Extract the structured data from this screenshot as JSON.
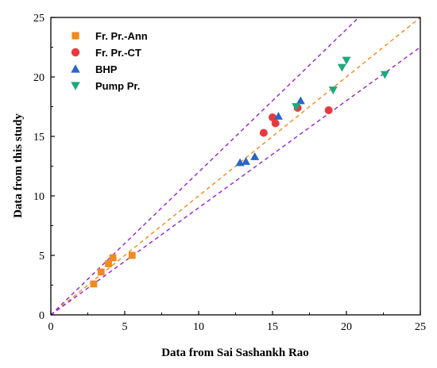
{
  "chart_data": {
    "type": "scatter",
    "title": "",
    "xlabel": "Data from Sai Sashankh Rao",
    "ylabel": "Data from this study",
    "xlim": [
      0,
      25
    ],
    "ylim": [
      0,
      25
    ],
    "xticks": [
      0,
      5,
      10,
      15,
      20,
      25
    ],
    "yticks": [
      0,
      5,
      10,
      15,
      20,
      25
    ],
    "grid": false,
    "legend_position": "top-left",
    "series": [
      {
        "name": "Fr. Pr.-Ann",
        "marker": "square",
        "color": "#f28a1e",
        "points": [
          [
            2.9,
            2.6
          ],
          [
            3.4,
            3.6
          ],
          [
            3.9,
            4.3
          ],
          [
            4.2,
            4.8
          ],
          [
            5.5,
            5.0
          ]
        ]
      },
      {
        "name": "Fr. Pr.-CT",
        "marker": "circle",
        "color": "#e8393f",
        "points": [
          [
            14.4,
            15.3
          ],
          [
            15.0,
            16.6
          ],
          [
            15.2,
            16.1
          ],
          [
            16.7,
            17.4
          ],
          [
            18.8,
            17.2
          ]
        ]
      },
      {
        "name": "BHP",
        "marker": "triangle-up",
        "color": "#2867c9",
        "points": [
          [
            12.8,
            12.8
          ],
          [
            13.2,
            12.9
          ],
          [
            13.8,
            13.3
          ],
          [
            15.4,
            16.7
          ],
          [
            16.9,
            18.0
          ]
        ]
      },
      {
        "name": "Pump Pr.",
        "marker": "triangle-down",
        "color": "#1aa97a",
        "points": [
          [
            16.6,
            17.5
          ],
          [
            19.1,
            18.9
          ],
          [
            19.7,
            20.8
          ],
          [
            20.0,
            21.4
          ],
          [
            22.6,
            20.2
          ]
        ]
      }
    ],
    "reference_lines": [
      {
        "role": "parity",
        "slope": 1.0,
        "color": "#ef8a1c"
      },
      {
        "role": "upper-bound",
        "slope": 1.2,
        "color": "#9b1fd1"
      },
      {
        "role": "lower-bound",
        "slope": 0.9,
        "color": "#9b1fd1"
      }
    ]
  }
}
